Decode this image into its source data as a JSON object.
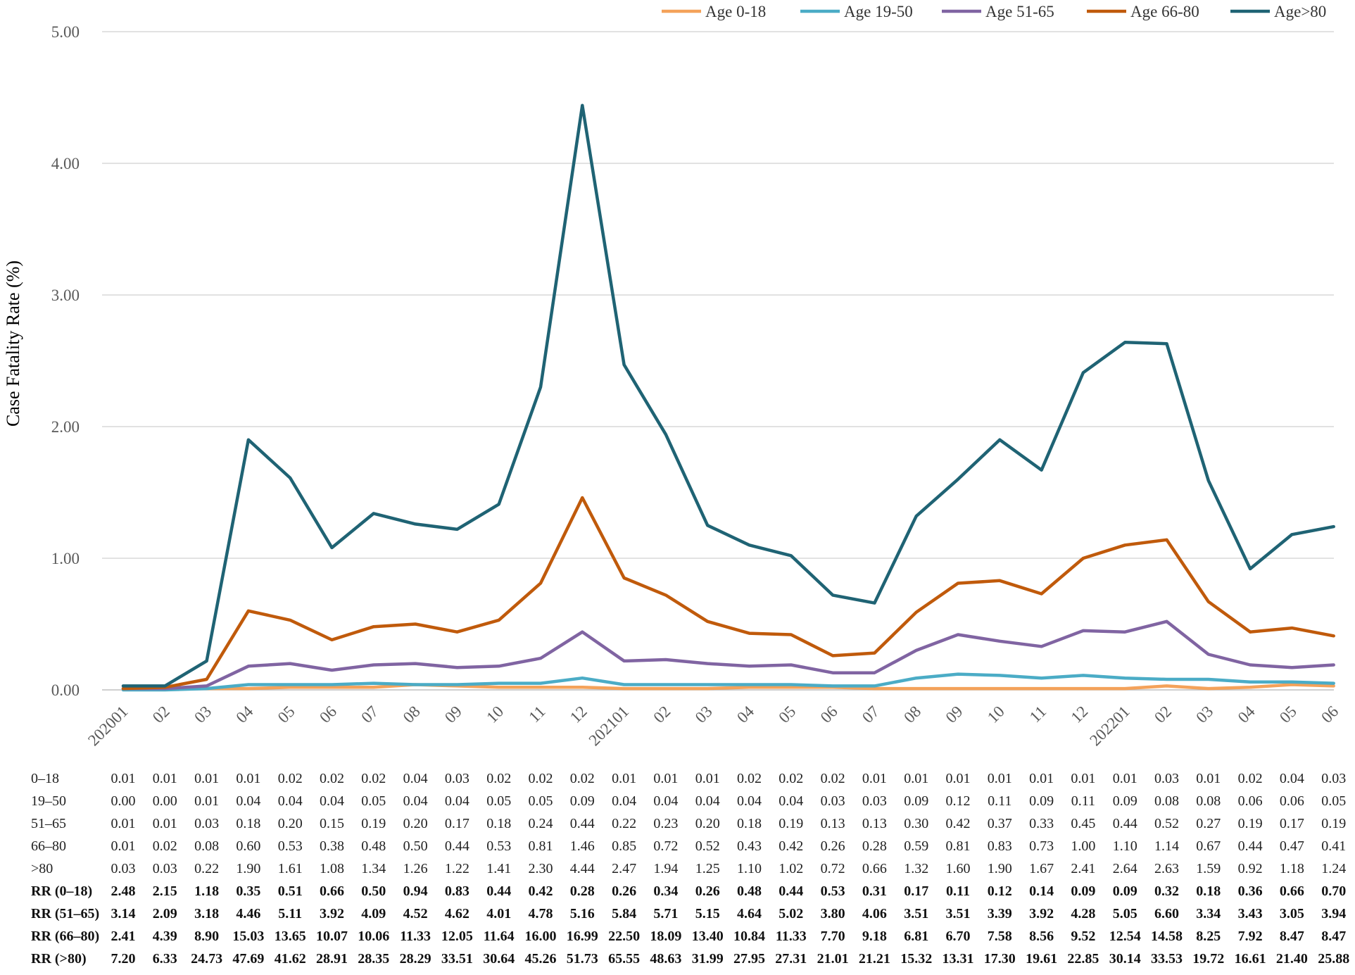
{
  "chart_data": {
    "type": "line",
    "title": "",
    "xlabel": "",
    "ylabel": "Case Fatality Rate (%)",
    "ylim": [
      0,
      5
    ],
    "y_ticks": [
      "0.00",
      "1.00",
      "2.00",
      "3.00",
      "4.00",
      "5.00"
    ],
    "grid": true,
    "legend_position": "top-right",
    "x_tick_labels": [
      "202001",
      "02",
      "03",
      "04",
      "05",
      "06",
      "07",
      "08",
      "09",
      "10",
      "11",
      "12",
      "202101",
      "02",
      "03",
      "04",
      "05",
      "06",
      "07",
      "08",
      "09",
      "10",
      "11",
      "12",
      "202201",
      "02",
      "03",
      "04",
      "05",
      "06"
    ],
    "series": [
      {
        "name": "Age 0-18",
        "color": "#f4a25a",
        "values": [
          0.01,
          0.01,
          0.01,
          0.01,
          0.02,
          0.02,
          0.02,
          0.04,
          0.03,
          0.02,
          0.02,
          0.02,
          0.01,
          0.01,
          0.01,
          0.02,
          0.02,
          0.02,
          0.01,
          0.01,
          0.01,
          0.01,
          0.01,
          0.01,
          0.01,
          0.03,
          0.01,
          0.02,
          0.04,
          0.03
        ]
      },
      {
        "name": "Age 19-50",
        "color": "#4bacc6",
        "values": [
          0.0,
          0.0,
          0.01,
          0.04,
          0.04,
          0.04,
          0.05,
          0.04,
          0.04,
          0.05,
          0.05,
          0.09,
          0.04,
          0.04,
          0.04,
          0.04,
          0.04,
          0.03,
          0.03,
          0.09,
          0.12,
          0.11,
          0.09,
          0.11,
          0.09,
          0.08,
          0.08,
          0.06,
          0.06,
          0.05
        ]
      },
      {
        "name": "Age 51-65",
        "color": "#8064a2",
        "values": [
          0.01,
          0.01,
          0.03,
          0.18,
          0.2,
          0.15,
          0.19,
          0.2,
          0.17,
          0.18,
          0.24,
          0.44,
          0.22,
          0.23,
          0.2,
          0.18,
          0.19,
          0.13,
          0.13,
          0.3,
          0.42,
          0.37,
          0.33,
          0.45,
          0.44,
          0.52,
          0.27,
          0.19,
          0.17,
          0.19
        ]
      },
      {
        "name": "Age 66-80",
        "color": "#c05a0b",
        "values": [
          0.01,
          0.02,
          0.08,
          0.6,
          0.53,
          0.38,
          0.48,
          0.5,
          0.44,
          0.53,
          0.81,
          1.46,
          0.85,
          0.72,
          0.52,
          0.43,
          0.42,
          0.26,
          0.28,
          0.59,
          0.81,
          0.83,
          0.73,
          1.0,
          1.1,
          1.14,
          0.67,
          0.44,
          0.47,
          0.41
        ]
      },
      {
        "name": "Age>80",
        "color": "#1f6374",
        "values": [
          0.03,
          0.03,
          0.22,
          1.9,
          1.61,
          1.08,
          1.34,
          1.26,
          1.22,
          1.41,
          2.3,
          4.44,
          2.47,
          1.94,
          1.25,
          1.1,
          1.02,
          0.72,
          0.66,
          1.32,
          1.6,
          1.9,
          1.67,
          2.41,
          2.64,
          2.63,
          1.59,
          0.92,
          1.18,
          1.24
        ]
      }
    ],
    "table": {
      "rows": [
        {
          "label": "0–18",
          "bold": false,
          "values": [
            "0.01",
            "0.01",
            "0.01",
            "0.01",
            "0.02",
            "0.02",
            "0.02",
            "0.04",
            "0.03",
            "0.02",
            "0.02",
            "0.02",
            "0.01",
            "0.01",
            "0.01",
            "0.02",
            "0.02",
            "0.02",
            "0.01",
            "0.01",
            "0.01",
            "0.01",
            "0.01",
            "0.01",
            "0.01",
            "0.03",
            "0.01",
            "0.02",
            "0.04",
            "0.03"
          ]
        },
        {
          "label": "19–50",
          "bold": false,
          "values": [
            "0.00",
            "0.00",
            "0.01",
            "0.04",
            "0.04",
            "0.04",
            "0.05",
            "0.04",
            "0.04",
            "0.05",
            "0.05",
            "0.09",
            "0.04",
            "0.04",
            "0.04",
            "0.04",
            "0.04",
            "0.03",
            "0.03",
            "0.09",
            "0.12",
            "0.11",
            "0.09",
            "0.11",
            "0.09",
            "0.08",
            "0.08",
            "0.06",
            "0.06",
            "0.05"
          ]
        },
        {
          "label": "51–65",
          "bold": false,
          "values": [
            "0.01",
            "0.01",
            "0.03",
            "0.18",
            "0.20",
            "0.15",
            "0.19",
            "0.20",
            "0.17",
            "0.18",
            "0.24",
            "0.44",
            "0.22",
            "0.23",
            "0.20",
            "0.18",
            "0.19",
            "0.13",
            "0.13",
            "0.30",
            "0.42",
            "0.37",
            "0.33",
            "0.45",
            "0.44",
            "0.52",
            "0.27",
            "0.19",
            "0.17",
            "0.19"
          ]
        },
        {
          "label": "66–80",
          "bold": false,
          "values": [
            "0.01",
            "0.02",
            "0.08",
            "0.60",
            "0.53",
            "0.38",
            "0.48",
            "0.50",
            "0.44",
            "0.53",
            "0.81",
            "1.46",
            "0.85",
            "0.72",
            "0.52",
            "0.43",
            "0.42",
            "0.26",
            "0.28",
            "0.59",
            "0.81",
            "0.83",
            "0.73",
            "1.00",
            "1.10",
            "1.14",
            "0.67",
            "0.44",
            "0.47",
            "0.41"
          ]
        },
        {
          "label": ">80",
          "bold": false,
          "values": [
            "0.03",
            "0.03",
            "0.22",
            "1.90",
            "1.61",
            "1.08",
            "1.34",
            "1.26",
            "1.22",
            "1.41",
            "2.30",
            "4.44",
            "2.47",
            "1.94",
            "1.25",
            "1.10",
            "1.02",
            "0.72",
            "0.66",
            "1.32",
            "1.60",
            "1.90",
            "1.67",
            "2.41",
            "2.64",
            "2.63",
            "1.59",
            "0.92",
            "1.18",
            "1.24"
          ]
        },
        {
          "label": "RR (0–18)",
          "bold": true,
          "values": [
            "2.48",
            "2.15",
            "1.18",
            "0.35",
            "0.51",
            "0.66",
            "0.50",
            "0.94",
            "0.83",
            "0.44",
            "0.42",
            "0.28",
            "0.26",
            "0.34",
            "0.26",
            "0.48",
            "0.44",
            "0.53",
            "0.31",
            "0.17",
            "0.11",
            "0.12",
            "0.14",
            "0.09",
            "0.09",
            "0.32",
            "0.18",
            "0.36",
            "0.66",
            "0.70"
          ]
        },
        {
          "label": "RR (51–65)",
          "bold": true,
          "values": [
            "3.14",
            "2.09",
            "3.18",
            "4.46",
            "5.11",
            "3.92",
            "4.09",
            "4.52",
            "4.62",
            "4.01",
            "4.78",
            "5.16",
            "5.84",
            "5.71",
            "5.15",
            "4.64",
            "5.02",
            "3.80",
            "4.06",
            "3.51",
            "3.51",
            "3.39",
            "3.92",
            "4.28",
            "5.05",
            "6.60",
            "3.34",
            "3.43",
            "3.05",
            "3.94"
          ]
        },
        {
          "label": "RR (66–80)",
          "bold": true,
          "values": [
            "2.41",
            "4.39",
            "8.90",
            "15.03",
            "13.65",
            "10.07",
            "10.06",
            "11.33",
            "12.05",
            "11.64",
            "16.00",
            "16.99",
            "22.50",
            "18.09",
            "13.40",
            "10.84",
            "11.33",
            "7.70",
            "9.18",
            "6.81",
            "6.70",
            "7.58",
            "8.56",
            "9.52",
            "12.54",
            "14.58",
            "8.25",
            "7.92",
            "8.47",
            "8.47"
          ]
        },
        {
          "label": "RR (>80)",
          "bold": true,
          "values": [
            "7.20",
            "6.33",
            "24.73",
            "47.69",
            "41.62",
            "28.91",
            "28.35",
            "28.29",
            "33.51",
            "30.64",
            "45.26",
            "51.73",
            "65.55",
            "48.63",
            "31.99",
            "27.95",
            "27.31",
            "21.01",
            "21.21",
            "15.32",
            "13.31",
            "17.30",
            "19.61",
            "22.85",
            "30.14",
            "33.53",
            "19.72",
            "16.61",
            "21.40",
            "25.88"
          ]
        }
      ]
    }
  }
}
